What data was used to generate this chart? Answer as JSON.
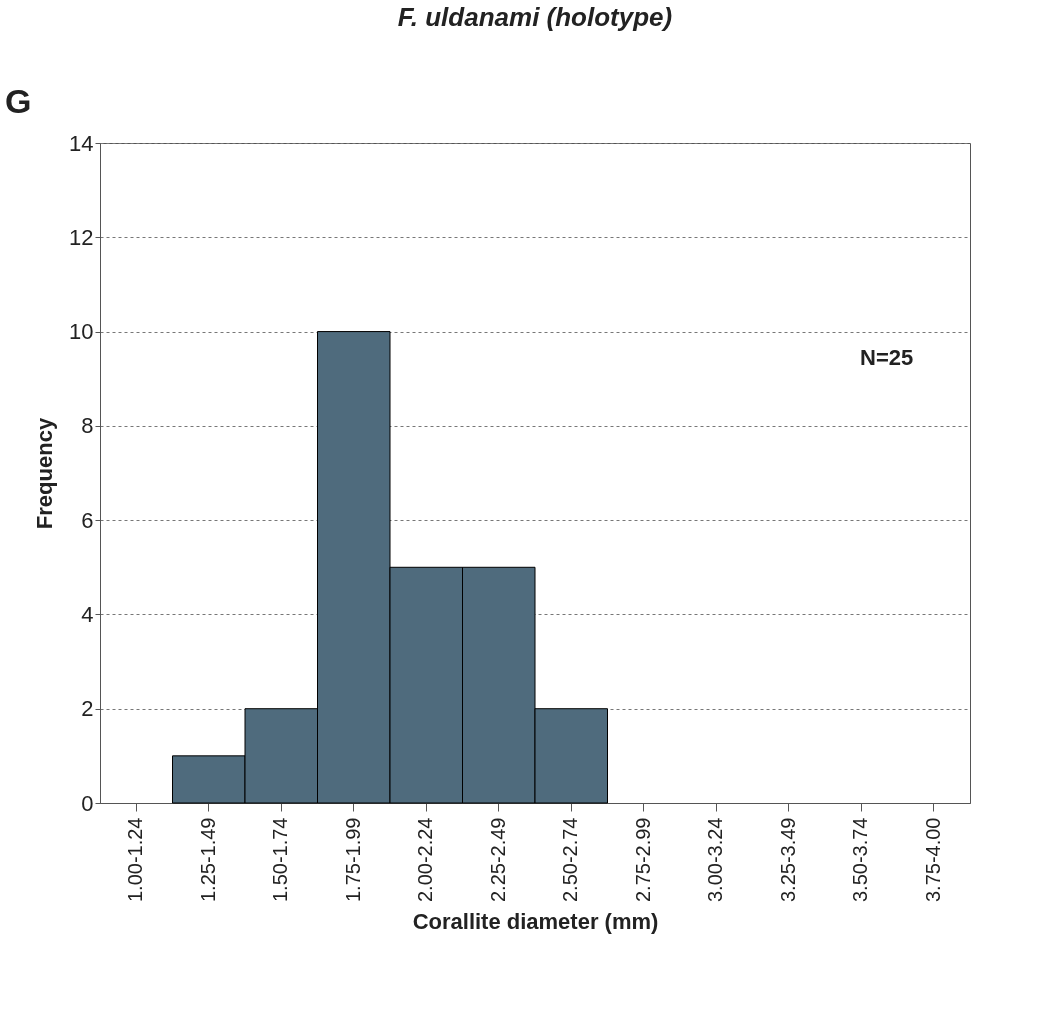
{
  "chart_data": {
    "type": "bar",
    "title": "F. uldanami (holotype)",
    "xlabel": "Corallite diameter (mm)",
    "ylabel": "Frequency",
    "categories": [
      "1.00-1.24",
      "1.25-1.49",
      "1.50-1.74",
      "1.75-1.99",
      "2.00-2.24",
      "2.25-2.49",
      "2.50-2.74",
      "2.75-2.99",
      "3.00-3.24",
      "3.25-3.49",
      "3.50-3.74",
      "3.75-4.00"
    ],
    "values": [
      0,
      1,
      2,
      10,
      5,
      5,
      2,
      0,
      0,
      0,
      0,
      0
    ],
    "color": "#4f6b7d",
    "ylim": [
      0,
      14
    ],
    "yticks": [
      0,
      2,
      4,
      6,
      8,
      10,
      12,
      14
    ],
    "grid": "y",
    "annotations": [
      "G",
      "N=25"
    ]
  }
}
